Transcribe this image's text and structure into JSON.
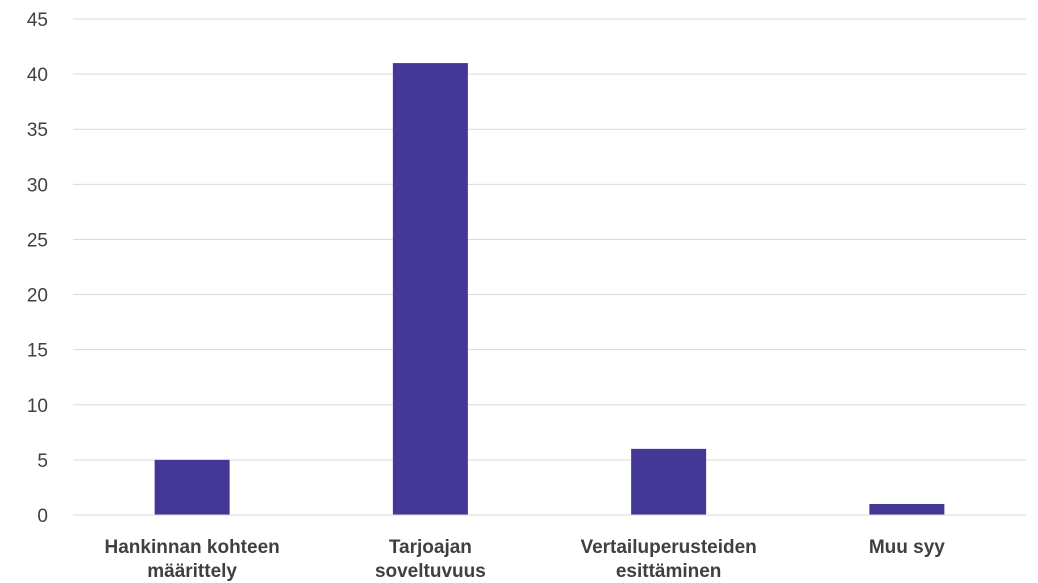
{
  "chart_data": {
    "type": "bar",
    "title": "",
    "xlabel": "",
    "ylabel": "",
    "categories": [
      [
        "Hankinnan kohteen",
        "määrittely"
      ],
      [
        "Tarjoajan",
        "soveltuvuus"
      ],
      [
        "Vertailuperusteiden",
        "esittäminen"
      ],
      [
        "Muu syy"
      ]
    ],
    "values": [
      5,
      41,
      6,
      1
    ],
    "ylim": [
      0,
      45
    ],
    "yticks": [
      "0",
      "5",
      "10",
      "15",
      "20",
      "25",
      "30",
      "35",
      "40",
      "45"
    ],
    "grid": true,
    "legend": "none",
    "bar_color": "#433896"
  }
}
